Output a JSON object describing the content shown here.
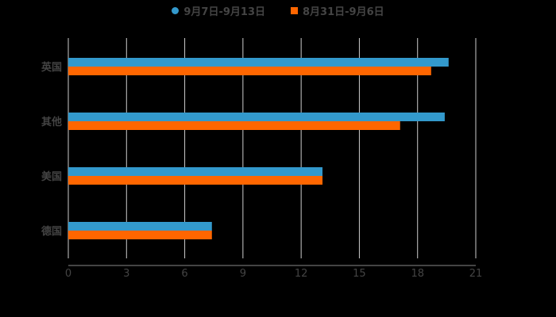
{
  "chart_data": {
    "type": "bar",
    "orientation": "horizontal",
    "title": "",
    "categories": [
      "英国",
      "其他",
      "美国",
      "德国"
    ],
    "series": [
      {
        "name": "9月7日-9月13日",
        "color": "#3399cc",
        "values": [
          19.6,
          19.4,
          13.1,
          7.4
        ]
      },
      {
        "name": "8月31日-9月6日",
        "color": "#ff6600",
        "values": [
          18.7,
          17.1,
          13.1,
          7.4
        ]
      }
    ],
    "xlabel": "",
    "ylabel": "",
    "xlim": [
      0,
      21
    ],
    "xticks": [
      "0",
      "3",
      "6",
      "9",
      "12",
      "15",
      "18",
      "21"
    ],
    "grid": true,
    "legend_position": "top"
  },
  "legend": [
    {
      "label": "9月7日-9月13日",
      "color": "#3399cc",
      "shape": "circle"
    },
    {
      "label": "8月31日-9月6日",
      "color": "#ff6600",
      "shape": "square"
    }
  ]
}
